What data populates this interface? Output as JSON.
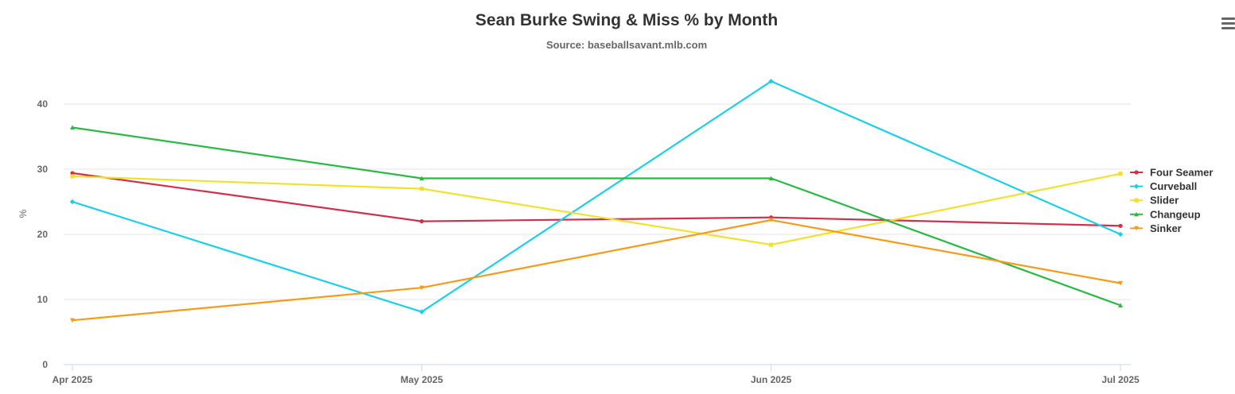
{
  "chart_data": {
    "type": "line",
    "title": "Sean Burke Swing & Miss % by Month",
    "subtitle": "Source: baseballsavant.mlb.com",
    "ylabel": "%",
    "xlabel": "",
    "categories": [
      "Apr 2025",
      "May 2025",
      "Jun 2025",
      "Jul 2025"
    ],
    "ylim": [
      0,
      45
    ],
    "yticks": [
      0,
      10,
      20,
      30,
      40
    ],
    "grid": true,
    "legend_position": "right",
    "series": [
      {
        "name": "Four Seamer",
        "color": "#d0304b",
        "values": [
          29.4,
          22.0,
          22.6,
          21.3
        ]
      },
      {
        "name": "Curveball",
        "color": "#1dcfe6",
        "values": [
          25.0,
          8.1,
          43.5,
          20.0
        ]
      },
      {
        "name": "Slider",
        "color": "#f0e12c",
        "values": [
          28.9,
          27.0,
          18.4,
          29.3
        ]
      },
      {
        "name": "Changeup",
        "color": "#2bb844",
        "values": [
          36.4,
          28.6,
          28.6,
          9.1
        ]
      },
      {
        "name": "Sinker",
        "color": "#f59b1a",
        "values": [
          6.8,
          11.8,
          22.2,
          12.5
        ]
      }
    ]
  },
  "menu": {
    "icon": "hamburger-menu-icon"
  }
}
